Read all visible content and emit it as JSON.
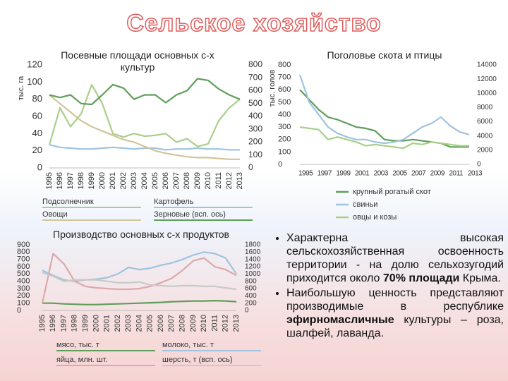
{
  "title": "Сельское хозяйство",
  "bullets": [
    [
      "Характерна высокая сельскохозяйственная освоенность территории - на долю сельхозугодий приходится около ",
      "70% площади",
      " Крыма."
    ],
    [
      "Наибольшую ценность представляют производимые в республике ",
      "эфирномасличные",
      " культуры – роза, шалфей, лаванда."
    ]
  ],
  "chart_data": [
    {
      "type": "line",
      "title": "Посевные площади основных с-х культур",
      "ylabel": "тыс. га",
      "categories": [
        "1995",
        "1996",
        "1997",
        "1998",
        "1999",
        "2000",
        "2001",
        "2002",
        "2003",
        "2004",
        "2005",
        "2006",
        "2007",
        "2008",
        "2009",
        "2010",
        "2011",
        "2012",
        "2013"
      ],
      "ylim": [
        0,
        120
      ],
      "yticks": [
        0,
        20,
        40,
        60,
        80,
        100,
        120
      ],
      "y2lim": [
        0,
        800
      ],
      "y2ticks": [
        0,
        100,
        200,
        300,
        400,
        500,
        600,
        700,
        800
      ],
      "series": [
        {
          "name": "Подсолнечник",
          "color": "#a9cf8a",
          "values": [
            27,
            70,
            48,
            63,
            97,
            75,
            40,
            36,
            40,
            37,
            38,
            40,
            30,
            34,
            25,
            28,
            55,
            70,
            80
          ]
        },
        {
          "name": "Картофель",
          "color": "#9fc3e0",
          "values": [
            27,
            24,
            23,
            22,
            22,
            23,
            24,
            23,
            22,
            23,
            23,
            21,
            22,
            22,
            23,
            22,
            22,
            21,
            21
          ]
        },
        {
          "name": "Овощи",
          "color": "#d2c49a",
          "values": [
            85,
            75,
            65,
            55,
            48,
            43,
            38,
            33,
            30,
            25,
            20,
            17,
            15,
            13,
            12,
            12,
            11,
            10,
            10
          ]
        },
        {
          "name": "Зерновые (всп. ось)",
          "color": "#5f9e5a",
          "axis": "y2",
          "values": [
            567,
            547,
            567,
            500,
            493,
            567,
            647,
            620,
            533,
            567,
            567,
            507,
            567,
            600,
            693,
            680,
            613,
            567,
            533
          ]
        }
      ]
    },
    {
      "type": "line",
      "title": "Поголовье скота и птицы",
      "ylabel": "тыс. голов",
      "categories": [
        "1995",
        null,
        "1997",
        null,
        "1999",
        null,
        "2001",
        null,
        "2003",
        null,
        "2005",
        null,
        "2007",
        null,
        "2009",
        null,
        "2011",
        null,
        "2013"
      ],
      "ylim": [
        0,
        800
      ],
      "yticks": [
        0,
        100,
        200,
        300,
        400,
        500,
        600,
        700,
        800
      ],
      "y2lim": [
        0,
        14000
      ],
      "y2ticks": [
        0,
        2000,
        4000,
        6000,
        8000,
        10000,
        12000,
        14000
      ],
      "series": [
        {
          "name": "крупный рогатый скот",
          "color": "#5f9e5a",
          "values": [
            600,
            520,
            440,
            380,
            360,
            330,
            300,
            290,
            270,
            200,
            190,
            190,
            200,
            190,
            180,
            170,
            140,
            140,
            140
          ]
        },
        {
          "name": "свиньи",
          "color": "#9fc3e0",
          "values": [
            720,
            500,
            400,
            300,
            250,
            220,
            200,
            200,
            180,
            170,
            180,
            200,
            250,
            300,
            330,
            380,
            310,
            260,
            240
          ]
        },
        {
          "name": "овцы и козы",
          "color": "#a9cf8a",
          "values": [
            300,
            290,
            280,
            200,
            220,
            200,
            180,
            150,
            160,
            150,
            140,
            130,
            170,
            160,
            180,
            170,
            160,
            150,
            150
          ]
        }
      ]
    },
    {
      "type": "line",
      "title": "Производство основных с-х продуктов",
      "categories": [
        "1995",
        "1996",
        "1997",
        "1998",
        "1999",
        "2000",
        "2001",
        "2002",
        "2003",
        "2004",
        "2005",
        "2006",
        "2007",
        "2008",
        "2009",
        "2010",
        "2011",
        "2012",
        "2013"
      ],
      "ylim": [
        0,
        900
      ],
      "yticks": [
        0,
        100,
        200,
        300,
        400,
        500,
        600,
        700,
        800,
        900
      ],
      "y2lim": [
        0,
        1800
      ],
      "y2ticks": [
        0,
        200,
        400,
        600,
        800,
        1000,
        1200,
        1400,
        1600,
        1800
      ],
      "series": [
        {
          "name": "мясо, тыс. т",
          "color": "#5f9e5a",
          "values": [
            100,
            100,
            90,
            85,
            80,
            80,
            85,
            90,
            95,
            100,
            105,
            110,
            120,
            125,
            130,
            130,
            135,
            130,
            120
          ]
        },
        {
          "name": "молоко, тыс. т",
          "color": "#9fc3e0",
          "values": [
            550,
            480,
            420,
            400,
            420,
            430,
            450,
            500,
            590,
            560,
            580,
            620,
            650,
            700,
            760,
            800,
            780,
            720,
            500
          ]
        },
        {
          "name": "яйца, млн. шт.",
          "color": "#dca9a9",
          "values": [
            100,
            780,
            640,
            400,
            330,
            310,
            300,
            290,
            290,
            300,
            330,
            380,
            440,
            550,
            680,
            720,
            600,
            560,
            480
          ]
        },
        {
          "name": "шерсть, т (всп. ось)",
          "color": "#c9c9c9",
          "axis": "y2",
          "values": [
            1040,
            940,
            800,
            840,
            840,
            840,
            800,
            760,
            760,
            780,
            700,
            680,
            660,
            680,
            680,
            660,
            660,
            620,
            580
          ]
        }
      ]
    }
  ]
}
